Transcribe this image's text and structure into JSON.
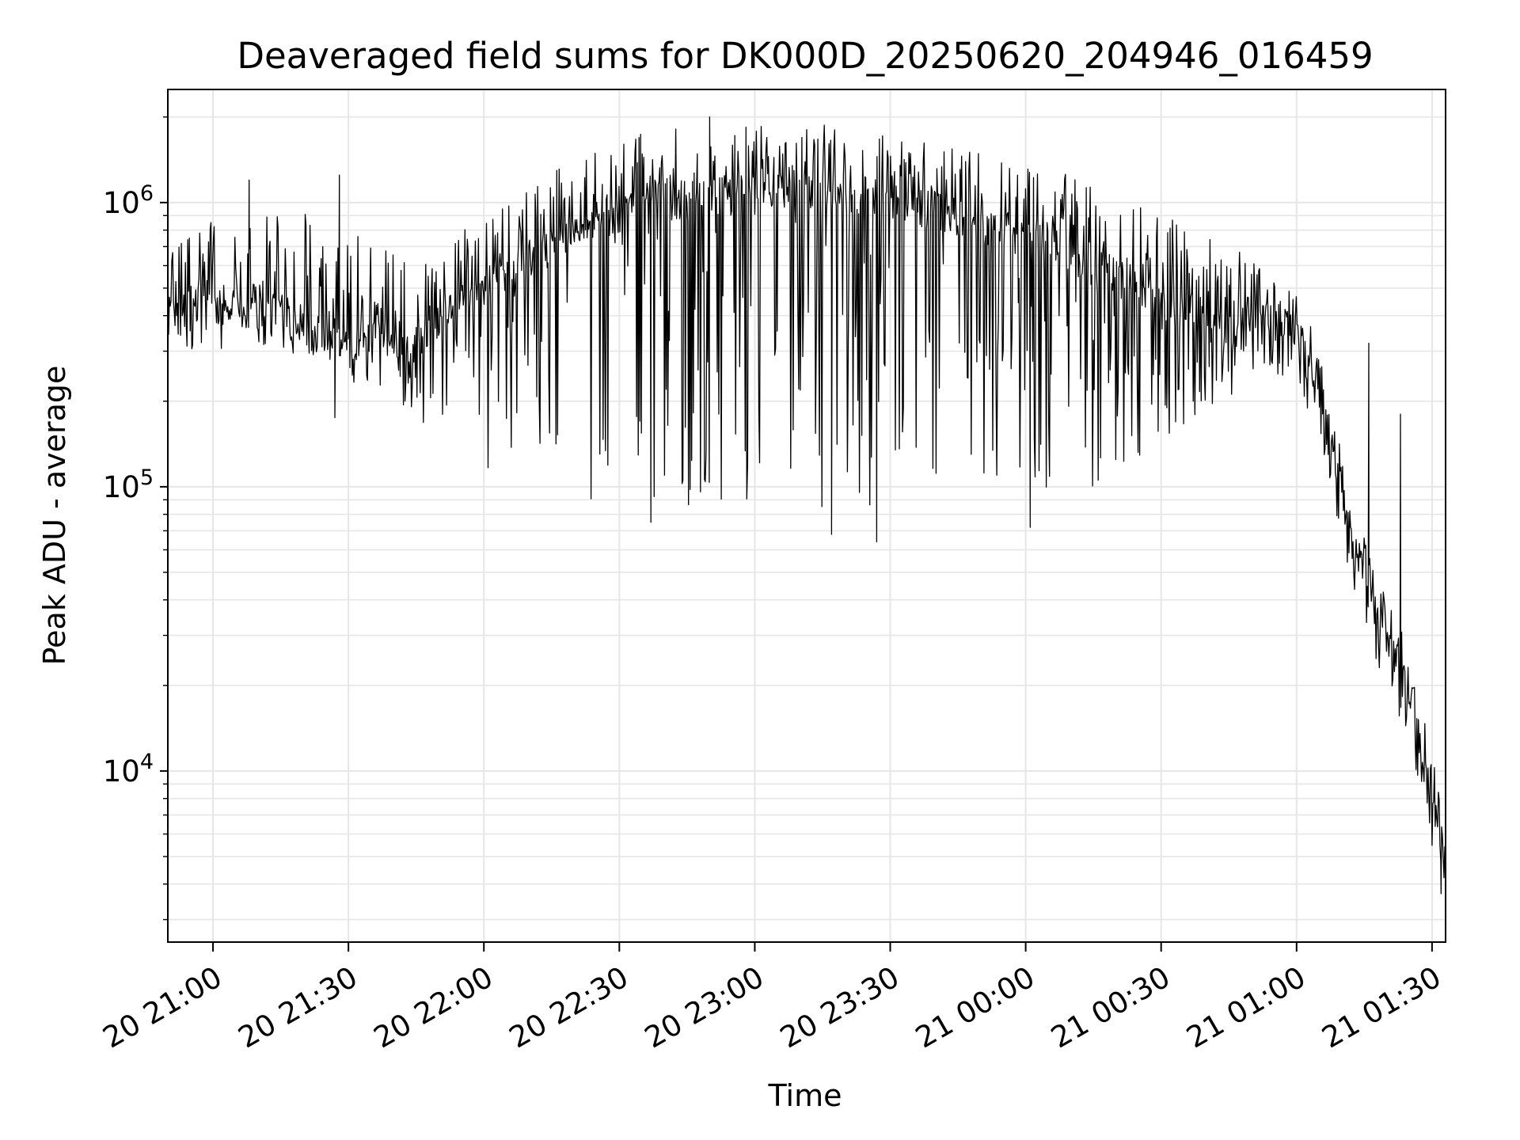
{
  "chart_data": {
    "type": "line",
    "title": "Deaveraged field sums for DK000D_20250620_204946_016459",
    "xlabel": "Time",
    "ylabel": "Peak ADU - average",
    "yscale": "log",
    "ylim": [
      2500,
      2500000
    ],
    "xlim": [
      "2025-06-20 20:50:00",
      "2025-06-21 01:33:00"
    ],
    "grid": true,
    "legend": "none",
    "line_color": "#000000",
    "grid_color": "#e6e6e6",
    "x_ticks": [
      {
        "time": "2025-06-20 21:00:00",
        "label": "20 21:00"
      },
      {
        "time": "2025-06-20 21:30:00",
        "label": "20 21:30"
      },
      {
        "time": "2025-06-20 22:00:00",
        "label": "20 22:00"
      },
      {
        "time": "2025-06-20 22:30:00",
        "label": "20 22:30"
      },
      {
        "time": "2025-06-20 23:00:00",
        "label": "20 23:00"
      },
      {
        "time": "2025-06-20 23:30:00",
        "label": "20 23:30"
      },
      {
        "time": "2025-06-21 00:00:00",
        "label": "21 00:00"
      },
      {
        "time": "2025-06-21 00:30:00",
        "label": "21 00:30"
      },
      {
        "time": "2025-06-21 01:00:00",
        "label": "21 01:00"
      },
      {
        "time": "2025-06-21 01:30:00",
        "label": "21 01:30"
      }
    ],
    "y_ticks": [
      {
        "value": 10000,
        "base": "10",
        "exp": "4"
      },
      {
        "value": 100000,
        "base": "10",
        "exp": "5"
      },
      {
        "value": 1000000,
        "base": "10",
        "exp": "6"
      }
    ],
    "envelope": [
      {
        "time": "2025-06-20 20:50:00",
        "base": 400000,
        "high": 700000,
        "low": 280000
      },
      {
        "time": "2025-06-20 21:00:00",
        "base": 420000,
        "high": 900000,
        "low": 300000
      },
      {
        "time": "2025-06-20 21:15:00",
        "base": 400000,
        "high": 1000000,
        "low": 310000
      },
      {
        "time": "2025-06-20 21:30:00",
        "base": 330000,
        "high": 800000,
        "low": 230000
      },
      {
        "time": "2025-06-20 21:45:00",
        "base": 320000,
        "high": 600000,
        "low": 180000
      },
      {
        "time": "2025-06-20 21:55:00",
        "base": 450000,
        "high": 800000,
        "low": 110000
      },
      {
        "time": "2025-06-20 22:15:00",
        "base": 700000,
        "high": 1300000,
        "low": 95000
      },
      {
        "time": "2025-06-20 22:35:00",
        "base": 1000000,
        "high": 1800000,
        "low": 85000
      },
      {
        "time": "2025-06-20 23:15:00",
        "base": 1100000,
        "high": 1900000,
        "low": 80000
      },
      {
        "time": "2025-06-20 23:45:00",
        "base": 900000,
        "high": 1600000,
        "low": 90000
      },
      {
        "time": "2025-06-21 00:15:00",
        "base": 600000,
        "high": 1200000,
        "low": 100000
      },
      {
        "time": "2025-06-21 00:45:00",
        "base": 350000,
        "high": 700000,
        "low": 200000
      },
      {
        "time": "2025-06-21 00:58:00",
        "base": 380000,
        "high": 550000,
        "low": 250000
      },
      {
        "time": "2025-06-21 01:05:00",
        "base": 230000,
        "high": 320000,
        "low": 150000
      },
      {
        "time": "2025-06-21 01:10:00",
        "base": 90000,
        "high": 130000,
        "low": 60000
      },
      {
        "time": "2025-06-21 01:15:00",
        "base": 45000,
        "high": 70000,
        "low": 25000
      },
      {
        "time": "2025-06-21 01:20:00",
        "base": 30000,
        "high": 40000,
        "low": 20000
      },
      {
        "time": "2025-06-21 01:25:00",
        "base": 20000,
        "high": 28000,
        "low": 12000
      },
      {
        "time": "2025-06-21 01:30:00",
        "base": 8000,
        "high": 12000,
        "low": 5000
      },
      {
        "time": "2025-06-21 01:33:00",
        "base": 4500,
        "high": 6000,
        "low": 3700
      }
    ],
    "notable_points": [
      {
        "time": "2025-06-20 21:08:00",
        "value": 1200000
      },
      {
        "time": "2025-06-20 21:28:00",
        "value": 1250000
      },
      {
        "time": "2025-06-20 21:27:00",
        "value": 175000
      },
      {
        "time": "2025-06-20 22:37:00",
        "value": 75000
      },
      {
        "time": "2025-06-20 22:50:00",
        "value": 2000000
      },
      {
        "time": "2025-06-20 23:17:00",
        "value": 68000
      },
      {
        "time": "2025-06-20 23:27:00",
        "value": 64000
      },
      {
        "time": "2025-06-21 00:01:00",
        "value": 72000
      },
      {
        "time": "2025-06-21 01:16:00",
        "value": 320000
      },
      {
        "time": "2025-06-21 01:23:00",
        "value": 180000
      },
      {
        "time": "2025-06-21 01:32:00",
        "value": 3700
      }
    ]
  }
}
